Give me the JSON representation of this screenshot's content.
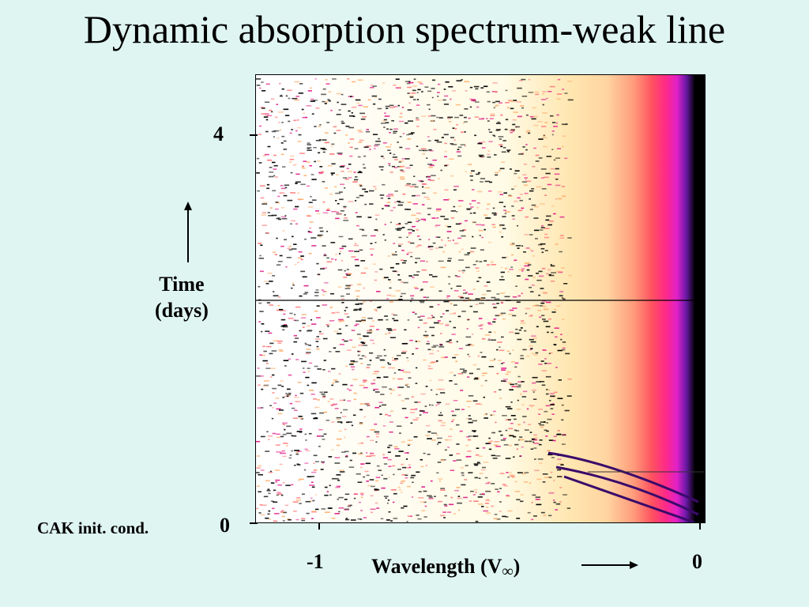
{
  "title": "Dynamic absorption spectrum-weak line",
  "yaxis": {
    "label_line1": "Time",
    "label_line2": "(days)",
    "tick_top": "4",
    "tick_bottom": "0"
  },
  "xaxis": {
    "label_text": "Wavelength (V",
    "label_sub": "∞",
    "label_close": ")",
    "tick_left": "-1",
    "tick_right": "0"
  },
  "note": "CAK init. cond.",
  "colors": {
    "background": "#dff5f1",
    "gradient": [
      "#fff9d8",
      "#ffe0a8",
      "#ff9a7a",
      "#ff4a55",
      "#ff2a80",
      "#e020c0",
      "#5a1aa0",
      "#000000"
    ]
  }
}
